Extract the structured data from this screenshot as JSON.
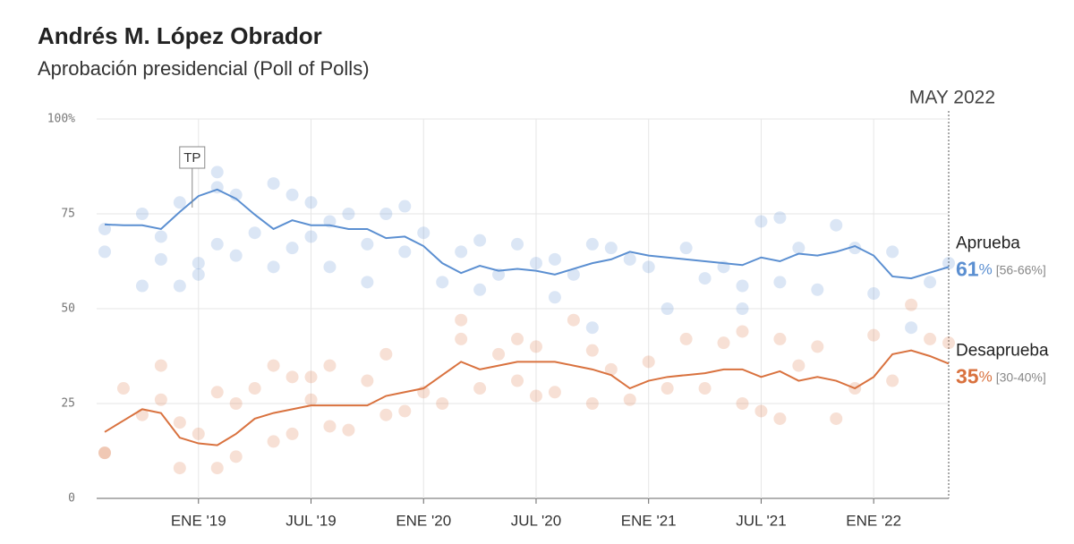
{
  "chart_data": {
    "type": "line",
    "title": "Andrés M. López Obrador",
    "subtitle": "Aprobación presidencial (Poll of Polls)",
    "date_label": "MAY 2022",
    "annotations": [
      {
        "text": "TP",
        "x": "2019-01"
      }
    ],
    "x": [
      "2018-08",
      "2018-09",
      "2018-10",
      "2018-11",
      "2018-12",
      "2019-01",
      "2019-02",
      "2019-03",
      "2019-04",
      "2019-05",
      "2019-06",
      "2019-07",
      "2019-08",
      "2019-09",
      "2019-10",
      "2019-11",
      "2019-12",
      "2020-01",
      "2020-02",
      "2020-03",
      "2020-04",
      "2020-05",
      "2020-06",
      "2020-07",
      "2020-08",
      "2020-09",
      "2020-10",
      "2020-11",
      "2020-12",
      "2021-01",
      "2021-02",
      "2021-03",
      "2021-04",
      "2021-05",
      "2021-06",
      "2021-07",
      "2021-08",
      "2021-09",
      "2021-10",
      "2021-11",
      "2021-12",
      "2022-01",
      "2022-02",
      "2022-03",
      "2022-04",
      "2022-05"
    ],
    "xlim": [
      "2018-08",
      "2022-05"
    ],
    "xticks": [
      {
        "value": "2019-01",
        "label": "ENE '19"
      },
      {
        "value": "2019-07",
        "label": "JUL '19"
      },
      {
        "value": "2020-01",
        "label": "ENE '20"
      },
      {
        "value": "2020-07",
        "label": "JUL '20"
      },
      {
        "value": "2021-01",
        "label": "ENE '21"
      },
      {
        "value": "2021-07",
        "label": "JUL '21"
      },
      {
        "value": "2022-01",
        "label": "ENE '22"
      }
    ],
    "ylim": [
      0,
      100
    ],
    "yticks": [
      {
        "value": 100,
        "label": "100%"
      },
      75,
      50,
      25,
      0
    ],
    "grid": true,
    "series": [
      {
        "name": "Aprueba",
        "color": "#5b8fd1",
        "current": 61,
        "unit": "%",
        "range": "[56-66%]",
        "values": [
          72.2,
          72,
          72,
          71,
          75.5,
          79.7,
          81.4,
          79,
          74.8,
          71,
          73.3,
          72,
          72,
          71,
          71,
          68.6,
          69,
          66.5,
          62,
          59.4,
          61.3,
          60,
          60.5,
          60,
          59,
          60.5,
          62,
          63,
          65,
          64,
          63.5,
          63,
          62.5,
          62,
          61.5,
          63.5,
          62.5,
          64.5,
          64,
          65,
          66.5,
          64,
          58.5,
          58,
          59.5,
          61
        ],
        "polls": {
          "x": [
            "2018-08",
            "2018-08",
            "2018-10",
            "2018-10",
            "2018-11",
            "2018-11",
            "2018-12",
            "2018-12",
            "2019-01",
            "2019-01",
            "2019-02",
            "2019-02",
            "2019-02",
            "2019-03",
            "2019-03",
            "2019-04",
            "2019-05",
            "2019-05",
            "2019-06",
            "2019-06",
            "2019-07",
            "2019-07",
            "2019-08",
            "2019-08",
            "2019-09",
            "2019-10",
            "2019-10",
            "2019-11",
            "2019-12",
            "2019-12",
            "2020-01",
            "2020-02",
            "2020-03",
            "2020-04",
            "2020-04",
            "2020-05",
            "2020-06",
            "2020-07",
            "2020-08",
            "2020-08",
            "2020-09",
            "2020-10",
            "2020-10",
            "2020-11",
            "2020-12",
            "2021-01",
            "2021-02",
            "2021-03",
            "2021-04",
            "2021-05",
            "2021-06",
            "2021-06",
            "2021-07",
            "2021-08",
            "2021-08",
            "2021-09",
            "2021-10",
            "2021-11",
            "2021-12",
            "2022-01",
            "2022-02",
            "2022-03",
            "2022-04",
            "2022-05"
          ],
          "values": [
            71,
            65,
            56,
            75,
            69,
            63,
            56,
            78,
            62,
            59,
            82,
            86,
            67,
            80,
            64,
            70,
            83,
            61,
            80,
            66,
            78,
            69,
            73,
            61,
            75,
            67,
            57,
            75,
            77,
            65,
            70,
            57,
            65,
            68,
            55,
            59,
            67,
            62,
            53,
            63,
            59,
            45,
            67,
            66,
            63,
            61,
            50,
            66,
            58,
            61,
            50,
            56,
            73,
            74,
            57,
            66,
            55,
            72,
            66,
            54,
            65,
            45,
            57,
            62
          ]
        }
      },
      {
        "name": "Desaprueba",
        "color": "#d9723f",
        "current": 35,
        "unit": "%",
        "range": "[30-40%]",
        "values": [
          17.5,
          20.5,
          23.5,
          22.5,
          16,
          14.5,
          14,
          17,
          21,
          22.5,
          23.5,
          24.5,
          24.5,
          24.5,
          24.5,
          27,
          28,
          29,
          32.5,
          36,
          34,
          35,
          36,
          36,
          36,
          35,
          34,
          32.5,
          29,
          31,
          32,
          32.5,
          33,
          34,
          34,
          32,
          33.5,
          31,
          32,
          31,
          29,
          32,
          38,
          39,
          37.5,
          35.5
        ],
        "polls": {
          "x": [
            "2018-08",
            "2018-08",
            "2018-09",
            "2018-10",
            "2018-11",
            "2018-11",
            "2018-12",
            "2018-12",
            "2019-01",
            "2019-02",
            "2019-02",
            "2019-03",
            "2019-03",
            "2019-04",
            "2019-05",
            "2019-05",
            "2019-06",
            "2019-06",
            "2019-07",
            "2019-07",
            "2019-08",
            "2019-08",
            "2019-09",
            "2019-10",
            "2019-11",
            "2019-11",
            "2019-12",
            "2020-01",
            "2020-02",
            "2020-03",
            "2020-03",
            "2020-04",
            "2020-05",
            "2020-06",
            "2020-06",
            "2020-07",
            "2020-07",
            "2020-08",
            "2020-09",
            "2020-10",
            "2020-10",
            "2020-11",
            "2020-12",
            "2021-01",
            "2021-02",
            "2021-03",
            "2021-04",
            "2021-05",
            "2021-06",
            "2021-06",
            "2021-07",
            "2021-08",
            "2021-08",
            "2021-09",
            "2021-10",
            "2021-11",
            "2021-12",
            "2022-01",
            "2022-02",
            "2022-03",
            "2022-04",
            "2022-05"
          ],
          "values": [
            12,
            12,
            29,
            22,
            35,
            26,
            20,
            8,
            17,
            28,
            8,
            25,
            11,
            29,
            15,
            35,
            32,
            17,
            32,
            26,
            19,
            35,
            18,
            31,
            22,
            38,
            23,
            28,
            25,
            42,
            47,
            29,
            38,
            42,
            31,
            40,
            27,
            28,
            47,
            39,
            25,
            34,
            26,
            36,
            29,
            42,
            29,
            41,
            44,
            25,
            23,
            42,
            21,
            35,
            40,
            21,
            29,
            43,
            31,
            51,
            42,
            41
          ]
        }
      }
    ]
  }
}
